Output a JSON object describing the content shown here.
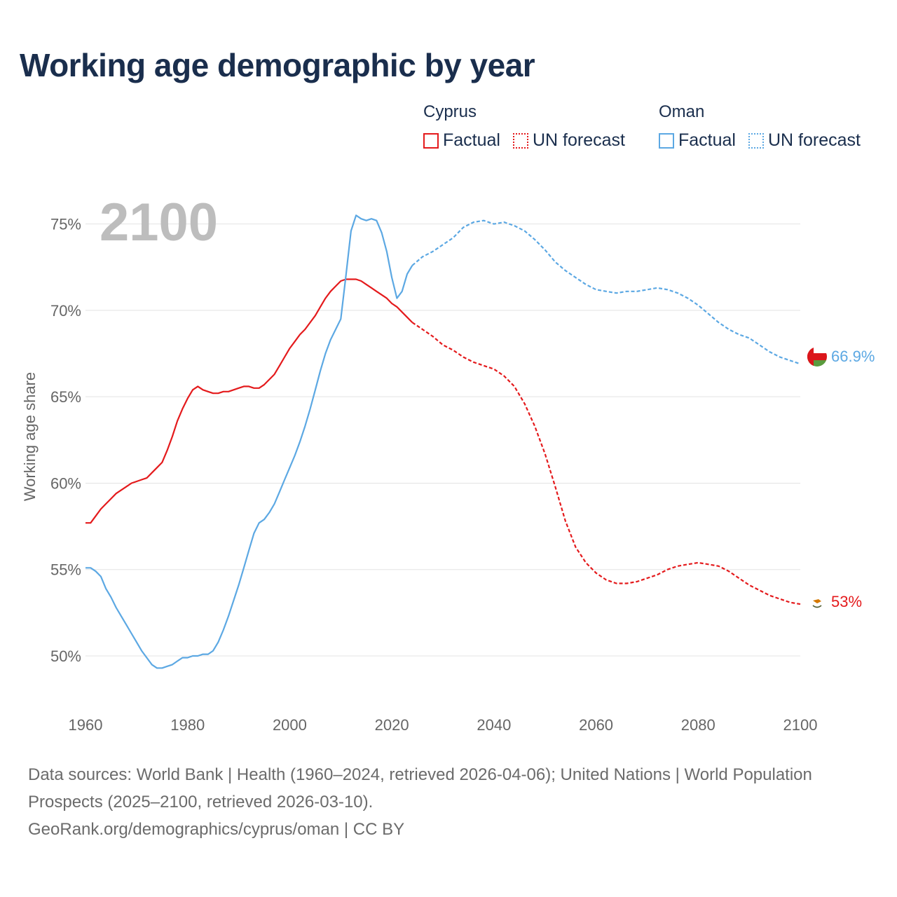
{
  "title": "Working age demographic by year",
  "legend": {
    "groups": [
      {
        "country": "Cyprus",
        "factual_label": "Factual",
        "forecast_label": "UN forecast",
        "color": "#e41a1c"
      },
      {
        "country": "Oman",
        "factual_label": "Factual",
        "forecast_label": "UN forecast",
        "color": "#5ca8e3"
      }
    ]
  },
  "footer": {
    "sources": "Data sources: World Bank | Health (1960–2024, retrieved 2026-04-06); United Nations | World Population Prospects (2025–2100, retrieved 2026-03-10).",
    "credit": "GeoRank.org/demographics/cyprus/oman | CC BY"
  },
  "chart_data": {
    "type": "line",
    "title": "Working age demographic by year",
    "xlabel": "",
    "ylabel": "Working age share",
    "year_display": "2100",
    "xlim": [
      1960,
      2100
    ],
    "ylim": [
      47,
      76.2
    ],
    "x_ticks": [
      1960,
      1980,
      2000,
      2020,
      2040,
      2060,
      2080,
      2100
    ],
    "y_ticks": [
      50,
      55,
      60,
      65,
      70,
      75
    ],
    "y_tick_labels": [
      "50%",
      "55%",
      "60%",
      "65%",
      "70%",
      "75%"
    ],
    "grid": true,
    "factual_until": 2024,
    "series": [
      {
        "name": "Cyprus",
        "color": "#e41a1c",
        "end_label": "53%",
        "points": [
          [
            1960,
            57.7
          ],
          [
            1961,
            57.7
          ],
          [
            1962,
            58.1
          ],
          [
            1963,
            58.5
          ],
          [
            1964,
            58.8
          ],
          [
            1965,
            59.1
          ],
          [
            1966,
            59.4
          ],
          [
            1967,
            59.6
          ],
          [
            1968,
            59.8
          ],
          [
            1969,
            60.0
          ],
          [
            1970,
            60.1
          ],
          [
            1971,
            60.2
          ],
          [
            1972,
            60.3
          ],
          [
            1973,
            60.6
          ],
          [
            1974,
            60.9
          ],
          [
            1975,
            61.2
          ],
          [
            1976,
            61.9
          ],
          [
            1977,
            62.7
          ],
          [
            1978,
            63.6
          ],
          [
            1979,
            64.3
          ],
          [
            1980,
            64.9
          ],
          [
            1981,
            65.4
          ],
          [
            1982,
            65.6
          ],
          [
            1983,
            65.4
          ],
          [
            1984,
            65.3
          ],
          [
            1985,
            65.2
          ],
          [
            1986,
            65.2
          ],
          [
            1987,
            65.3
          ],
          [
            1988,
            65.3
          ],
          [
            1989,
            65.4
          ],
          [
            1990,
            65.5
          ],
          [
            1991,
            65.6
          ],
          [
            1992,
            65.6
          ],
          [
            1993,
            65.5
          ],
          [
            1994,
            65.5
          ],
          [
            1995,
            65.7
          ],
          [
            1996,
            66.0
          ],
          [
            1997,
            66.3
          ],
          [
            1998,
            66.8
          ],
          [
            1999,
            67.3
          ],
          [
            2000,
            67.8
          ],
          [
            2001,
            68.2
          ],
          [
            2002,
            68.6
          ],
          [
            2003,
            68.9
          ],
          [
            2004,
            69.3
          ],
          [
            2005,
            69.7
          ],
          [
            2006,
            70.2
          ],
          [
            2007,
            70.7
          ],
          [
            2008,
            71.1
          ],
          [
            2009,
            71.4
          ],
          [
            2010,
            71.7
          ],
          [
            2011,
            71.8
          ],
          [
            2012,
            71.8
          ],
          [
            2013,
            71.8
          ],
          [
            2014,
            71.7
          ],
          [
            2015,
            71.5
          ],
          [
            2016,
            71.3
          ],
          [
            2017,
            71.1
          ],
          [
            2018,
            70.9
          ],
          [
            2019,
            70.7
          ],
          [
            2020,
            70.4
          ],
          [
            2021,
            70.2
          ],
          [
            2022,
            69.9
          ],
          [
            2023,
            69.6
          ],
          [
            2024,
            69.3
          ],
          [
            2026,
            68.9
          ],
          [
            2028,
            68.5
          ],
          [
            2030,
            68.0
          ],
          [
            2032,
            67.7
          ],
          [
            2034,
            67.3
          ],
          [
            2036,
            67.0
          ],
          [
            2038,
            66.8
          ],
          [
            2040,
            66.6
          ],
          [
            2042,
            66.2
          ],
          [
            2044,
            65.6
          ],
          [
            2046,
            64.6
          ],
          [
            2048,
            63.3
          ],
          [
            2050,
            61.7
          ],
          [
            2052,
            59.8
          ],
          [
            2054,
            57.8
          ],
          [
            2056,
            56.3
          ],
          [
            2058,
            55.4
          ],
          [
            2060,
            54.8
          ],
          [
            2062,
            54.4
          ],
          [
            2064,
            54.2
          ],
          [
            2066,
            54.2
          ],
          [
            2068,
            54.3
          ],
          [
            2070,
            54.5
          ],
          [
            2072,
            54.7
          ],
          [
            2074,
            55.0
          ],
          [
            2076,
            55.2
          ],
          [
            2078,
            55.3
          ],
          [
            2080,
            55.4
          ],
          [
            2082,
            55.3
          ],
          [
            2084,
            55.2
          ],
          [
            2086,
            54.9
          ],
          [
            2088,
            54.5
          ],
          [
            2090,
            54.1
          ],
          [
            2092,
            53.8
          ],
          [
            2094,
            53.5
          ],
          [
            2096,
            53.3
          ],
          [
            2098,
            53.1
          ],
          [
            2100,
            53.0
          ]
        ]
      },
      {
        "name": "Oman",
        "color": "#5ca8e3",
        "end_label": "66.9%",
        "points": [
          [
            1960,
            55.1
          ],
          [
            1961,
            55.1
          ],
          [
            1962,
            54.9
          ],
          [
            1963,
            54.6
          ],
          [
            1964,
            53.9
          ],
          [
            1965,
            53.4
          ],
          [
            1966,
            52.8
          ],
          [
            1967,
            52.3
          ],
          [
            1968,
            51.8
          ],
          [
            1969,
            51.3
          ],
          [
            1970,
            50.8
          ],
          [
            1971,
            50.3
          ],
          [
            1972,
            49.9
          ],
          [
            1973,
            49.5
          ],
          [
            1974,
            49.3
          ],
          [
            1975,
            49.3
          ],
          [
            1976,
            49.4
          ],
          [
            1977,
            49.5
          ],
          [
            1978,
            49.7
          ],
          [
            1979,
            49.9
          ],
          [
            1980,
            49.9
          ],
          [
            1981,
            50.0
          ],
          [
            1982,
            50.0
          ],
          [
            1983,
            50.1
          ],
          [
            1984,
            50.1
          ],
          [
            1985,
            50.3
          ],
          [
            1986,
            50.8
          ],
          [
            1987,
            51.5
          ],
          [
            1988,
            52.3
          ],
          [
            1989,
            53.2
          ],
          [
            1990,
            54.1
          ],
          [
            1991,
            55.1
          ],
          [
            1992,
            56.1
          ],
          [
            1993,
            57.1
          ],
          [
            1994,
            57.7
          ],
          [
            1995,
            57.9
          ],
          [
            1996,
            58.3
          ],
          [
            1997,
            58.8
          ],
          [
            1998,
            59.5
          ],
          [
            1999,
            60.2
          ],
          [
            2000,
            60.9
          ],
          [
            2001,
            61.6
          ],
          [
            2002,
            62.4
          ],
          [
            2003,
            63.3
          ],
          [
            2004,
            64.3
          ],
          [
            2005,
            65.4
          ],
          [
            2006,
            66.5
          ],
          [
            2007,
            67.5
          ],
          [
            2008,
            68.3
          ],
          [
            2009,
            68.9
          ],
          [
            2010,
            69.5
          ],
          [
            2011,
            72.0
          ],
          [
            2012,
            74.6
          ],
          [
            2013,
            75.5
          ],
          [
            2014,
            75.3
          ],
          [
            2015,
            75.2
          ],
          [
            2016,
            75.3
          ],
          [
            2017,
            75.2
          ],
          [
            2018,
            74.5
          ],
          [
            2019,
            73.4
          ],
          [
            2020,
            71.9
          ],
          [
            2021,
            70.7
          ],
          [
            2022,
            71.1
          ],
          [
            2023,
            72.1
          ],
          [
            2024,
            72.6
          ],
          [
            2026,
            73.1
          ],
          [
            2028,
            73.4
          ],
          [
            2030,
            73.8
          ],
          [
            2032,
            74.2
          ],
          [
            2034,
            74.8
          ],
          [
            2036,
            75.1
          ],
          [
            2038,
            75.2
          ],
          [
            2040,
            75.0
          ],
          [
            2042,
            75.1
          ],
          [
            2044,
            74.9
          ],
          [
            2046,
            74.6
          ],
          [
            2048,
            74.1
          ],
          [
            2050,
            73.5
          ],
          [
            2052,
            72.8
          ],
          [
            2054,
            72.3
          ],
          [
            2056,
            71.9
          ],
          [
            2058,
            71.5
          ],
          [
            2060,
            71.2
          ],
          [
            2062,
            71.1
          ],
          [
            2064,
            71.0
          ],
          [
            2066,
            71.1
          ],
          [
            2068,
            71.1
          ],
          [
            2070,
            71.2
          ],
          [
            2072,
            71.3
          ],
          [
            2074,
            71.2
          ],
          [
            2076,
            71.0
          ],
          [
            2078,
            70.7
          ],
          [
            2080,
            70.3
          ],
          [
            2082,
            69.8
          ],
          [
            2084,
            69.3
          ],
          [
            2086,
            68.9
          ],
          [
            2088,
            68.6
          ],
          [
            2090,
            68.4
          ],
          [
            2092,
            68.0
          ],
          [
            2094,
            67.6
          ],
          [
            2096,
            67.3
          ],
          [
            2098,
            67.1
          ],
          [
            2100,
            66.9
          ]
        ]
      }
    ]
  }
}
